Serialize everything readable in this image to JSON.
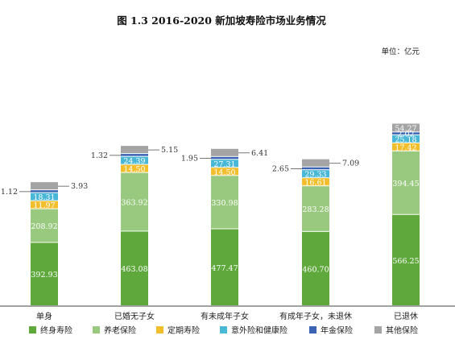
{
  "chart_data": {
    "type": "bar",
    "stacked": true,
    "title": "图 1.3   2016-2020 新加坡寿险市场业务情况",
    "unit_label": "单位：亿元",
    "categories": [
      "单身",
      "已婚无子女",
      "有未成年子女",
      "有成年子女，未退休",
      "已退休"
    ],
    "series": [
      {
        "name": "终身寿险",
        "color": "#5fa83c",
        "values": [
          392.93,
          463.08,
          477.47,
          460.7,
          566.25
        ]
      },
      {
        "name": "养老保险",
        "color": "#98c97e",
        "values": [
          208.92,
          363.92,
          330.98,
          283.28,
          394.45
        ]
      },
      {
        "name": "定期寿险",
        "color": "#f3be2c",
        "values": [
          11.97,
          14.5,
          14.5,
          16.61,
          17.42
        ]
      },
      {
        "name": "意外险和健康险",
        "color": "#48b8d6",
        "values": [
          18.31,
          24.39,
          27.31,
          29.33,
          25.18
        ]
      },
      {
        "name": "年金保险",
        "color": "#3a63b4",
        "values": [
          1.12,
          1.32,
          1.95,
          2.65,
          2.02
        ]
      },
      {
        "name": "其他保险",
        "color": "#a4a4a4",
        "values": [
          3.93,
          5.15,
          6.41,
          7.09,
          54.27
        ]
      }
    ],
    "legend_position": "bottom",
    "grid": false
  }
}
